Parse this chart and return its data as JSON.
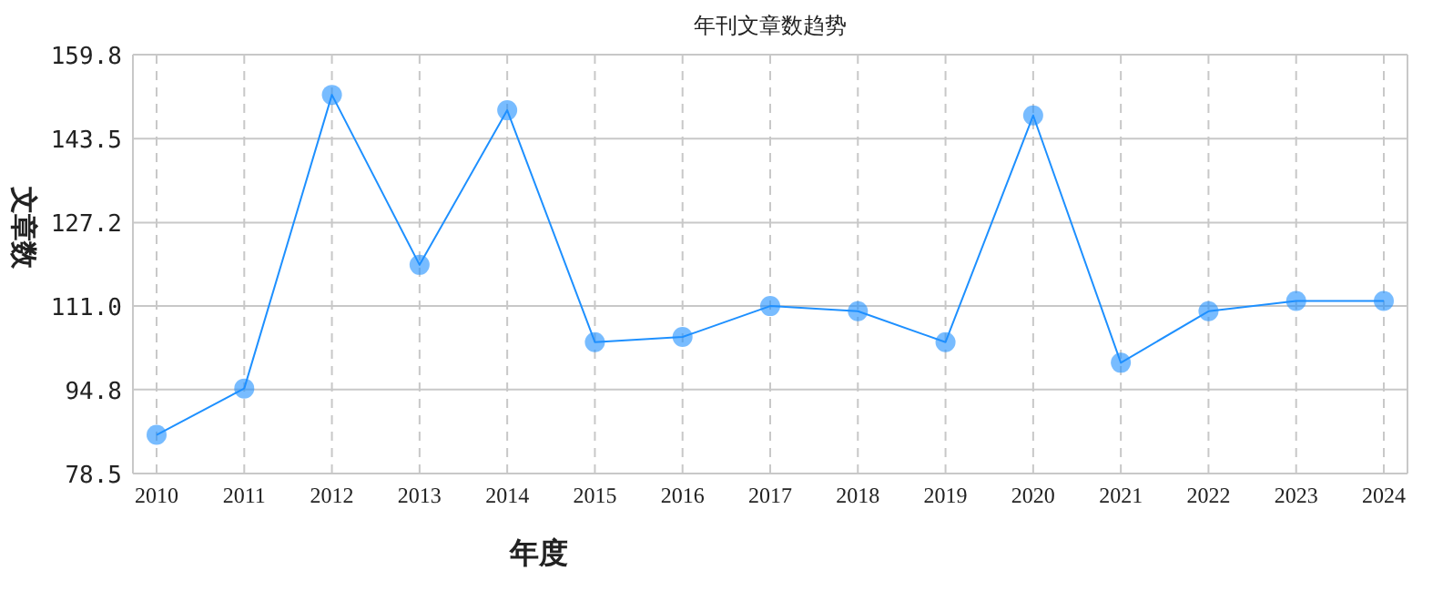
{
  "chart_data": {
    "type": "line",
    "title": "年刊文章数趋势",
    "xlabel": "年度",
    "ylabel": "文章数",
    "categories": [
      "2010",
      "2011",
      "2012",
      "2013",
      "2014",
      "2015",
      "2016",
      "2017",
      "2018",
      "2019",
      "2020",
      "2021",
      "2022",
      "2023",
      "2024"
    ],
    "series": [
      {
        "color": "#1e90ff",
        "values": [
          86,
          95,
          152,
          119,
          149,
          104,
          105,
          111,
          110,
          104,
          148,
          100,
          110,
          112,
          112
        ]
      }
    ],
    "ylim": [
      78.5,
      159.8
    ],
    "yticks": [
      {
        "value": 78.5,
        "label": "78.5"
      },
      {
        "value": 94.8,
        "label": "94.8"
      },
      {
        "value": 111.0,
        "label": "111.0"
      },
      {
        "value": 127.2,
        "label": "127.2"
      },
      {
        "value": 143.5,
        "label": "143.5"
      },
      {
        "value": 159.8,
        "label": "159.8"
      }
    ],
    "grid": true,
    "marker": "circle",
    "line_style": "solid"
  }
}
